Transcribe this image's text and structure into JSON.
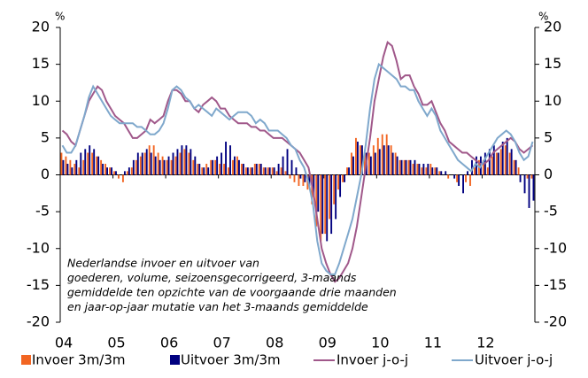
{
  "chart_data": {
    "type": "bar_line",
    "y_label": "%",
    "y2_label": "%",
    "annotation": [
      "Nederlandse invoer en uitvoer van",
      "goederen, volume, seizoensgecorrigeerd, 3-maands",
      "gemiddelde ten opzichte van de voorgaande drie maanden",
      "en jaar-op-jaar mutatie van het 3-maands gemiddelde"
    ],
    "categories": [
      "04",
      null,
      null,
      null,
      null,
      null,
      null,
      null,
      null,
      null,
      null,
      null,
      "05",
      null,
      null,
      null,
      null,
      null,
      null,
      null,
      null,
      null,
      null,
      null,
      "06",
      null,
      null,
      null,
      null,
      null,
      null,
      null,
      null,
      null,
      null,
      null,
      "07",
      null,
      null,
      null,
      null,
      null,
      null,
      null,
      null,
      null,
      null,
      null,
      "08",
      null,
      null,
      null,
      null,
      null,
      null,
      null,
      null,
      null,
      null,
      null,
      "09",
      null,
      null,
      null,
      null,
      null,
      null,
      null,
      null,
      null,
      null,
      null,
      "10",
      null,
      null,
      null,
      null,
      null,
      null,
      null,
      null,
      null,
      null,
      null,
      "11",
      null,
      null,
      null,
      null,
      null,
      null,
      null,
      null,
      null,
      null,
      null,
      "12",
      null,
      null,
      null,
      null,
      null,
      null,
      null,
      null,
      null,
      null,
      null
    ],
    "series": [
      {
        "name": "Invoer 3m/3m",
        "kind": "bar",
        "color": "#f26522",
        "values": [
          3,
          2.5,
          2,
          1.5,
          1,
          2,
          3,
          3,
          2.5,
          2,
          1.5,
          1,
          0.5,
          -0.5,
          -1,
          0.5,
          1,
          2,
          2.5,
          3,
          4,
          4,
          3,
          2.5,
          2,
          2,
          2.5,
          3,
          3.5,
          3,
          2,
          1.5,
          1,
          1.5,
          2,
          2,
          1.5,
          1.5,
          1,
          2,
          2.5,
          1.5,
          1,
          1,
          1.5,
          1.5,
          1,
          1,
          1,
          0.5,
          1,
          0.5,
          -0.5,
          -1,
          -1.5,
          -1.5,
          -2,
          -4,
          -7,
          -9,
          -8,
          -6,
          -4,
          -2,
          -1,
          1,
          3,
          5,
          4,
          3,
          3,
          4,
          5,
          5.5,
          5.5,
          4,
          3,
          2,
          2,
          2,
          1.5,
          1.5,
          1,
          1,
          1.5,
          1,
          0.5,
          0,
          -0.5,
          0,
          -1,
          0,
          -1,
          -1.5,
          1,
          2,
          2,
          1,
          2.5,
          3,
          3.5,
          4,
          3,
          2,
          1,
          0,
          -0.5,
          -0.5
        ]
      },
      {
        "name": "Uitvoer 3m/3m",
        "kind": "bar",
        "color": "#000080",
        "values": [
          2,
          1.5,
          1,
          2,
          3,
          3.5,
          4,
          3.5,
          2.5,
          1.5,
          1,
          1,
          0.5,
          0,
          0.5,
          1,
          2,
          3,
          3,
          3.5,
          3,
          2.5,
          2,
          2,
          2.5,
          3,
          3.5,
          4,
          4,
          3.5,
          2.5,
          1.5,
          1,
          1,
          2,
          2.5,
          3,
          4.5,
          4,
          2.5,
          2,
          1.5,
          1,
          1,
          1.5,
          1.5,
          1,
          1,
          1,
          1.5,
          2.5,
          3.5,
          2,
          1,
          -0.5,
          -1,
          -1.5,
          -3,
          -5,
          -8,
          -9,
          -8,
          -6,
          -3,
          -1,
          1,
          2.5,
          4.5,
          4,
          3,
          2.5,
          3,
          3.5,
          4,
          4,
          3,
          2.5,
          2,
          2,
          2,
          2,
          1.5,
          1.5,
          1.5,
          1,
          1,
          0.5,
          0.5,
          0,
          -0.5,
          -1.5,
          -2.5,
          0.5,
          2,
          2.5,
          2.5,
          3,
          3.5,
          4,
          3,
          4.5,
          5,
          3.5,
          2,
          -1,
          -2.5,
          -4.5,
          -3.5
        ]
      },
      {
        "name": "Invoer j-o-j",
        "kind": "line",
        "color": "#a0588a",
        "values": [
          6,
          5.5,
          4.5,
          4,
          6,
          8,
          10,
          11,
          12,
          11.5,
          10,
          9,
          8,
          7.5,
          7,
          6,
          5,
          5,
          5.5,
          6,
          7.5,
          7,
          7.5,
          8,
          10,
          11.5,
          11.5,
          11,
          10,
          10,
          9,
          8.5,
          9.5,
          10,
          10.5,
          10,
          9,
          9,
          8,
          7.5,
          7,
          7,
          7,
          6.5,
          6.5,
          6,
          6,
          5.5,
          5,
          5,
          5,
          4.5,
          4,
          3.5,
          3,
          2,
          1,
          -2,
          -6,
          -10,
          -12,
          -13.5,
          -14.5,
          -14,
          -13,
          -12,
          -10,
          -7,
          -3,
          1,
          5,
          10,
          13,
          16,
          18,
          17.5,
          15.5,
          13,
          13.5,
          13.5,
          12,
          11,
          9.5,
          9.5,
          10,
          8.5,
          7,
          6,
          4.5,
          4,
          3.5,
          3,
          3,
          2.5,
          2,
          1.5,
          1.5,
          2,
          3,
          3.5,
          4,
          4.5,
          5,
          4.5,
          3.5,
          3,
          3.5,
          4
        ]
      },
      {
        "name": "Uitvoer j-o-j",
        "kind": "line",
        "color": "#7fa8cc",
        "values": [
          4,
          3,
          3,
          4,
          6,
          8,
          10.5,
          12,
          11,
          10,
          9,
          8,
          7.5,
          7,
          7,
          7,
          7,
          6.5,
          6.5,
          6,
          5.5,
          5.5,
          6,
          7,
          9,
          11.5,
          12,
          11.5,
          10.5,
          10,
          9,
          9.5,
          9,
          8.5,
          8,
          9,
          8.5,
          8,
          7.5,
          8,
          8.5,
          8.5,
          8.5,
          8,
          7,
          7.5,
          7,
          6,
          6,
          6,
          5.5,
          5,
          4,
          3.5,
          2,
          1,
          -1,
          -4,
          -9,
          -12,
          -13,
          -13.5,
          -13.5,
          -12,
          -10,
          -8,
          -6,
          -3,
          0,
          4,
          9,
          13,
          15,
          14.5,
          14,
          13.5,
          13,
          12,
          12,
          11.5,
          11.5,
          10,
          9,
          8,
          9,
          8,
          6,
          5,
          4,
          3,
          2,
          1.5,
          1,
          0.5,
          1.5,
          1,
          2,
          3,
          4,
          5,
          5.5,
          6,
          5.5,
          4.5,
          3,
          2,
          2.5,
          4.5
        ]
      }
    ],
    "ylim": [
      -20,
      20
    ],
    "yticks": [
      20,
      15,
      10,
      5,
      0,
      -5,
      -10,
      -15,
      -20
    ],
    "y2lim": [
      -20,
      20
    ],
    "y2ticks": [
      20,
      15,
      10,
      5,
      0,
      -5,
      -10,
      -15,
      -20
    ]
  }
}
